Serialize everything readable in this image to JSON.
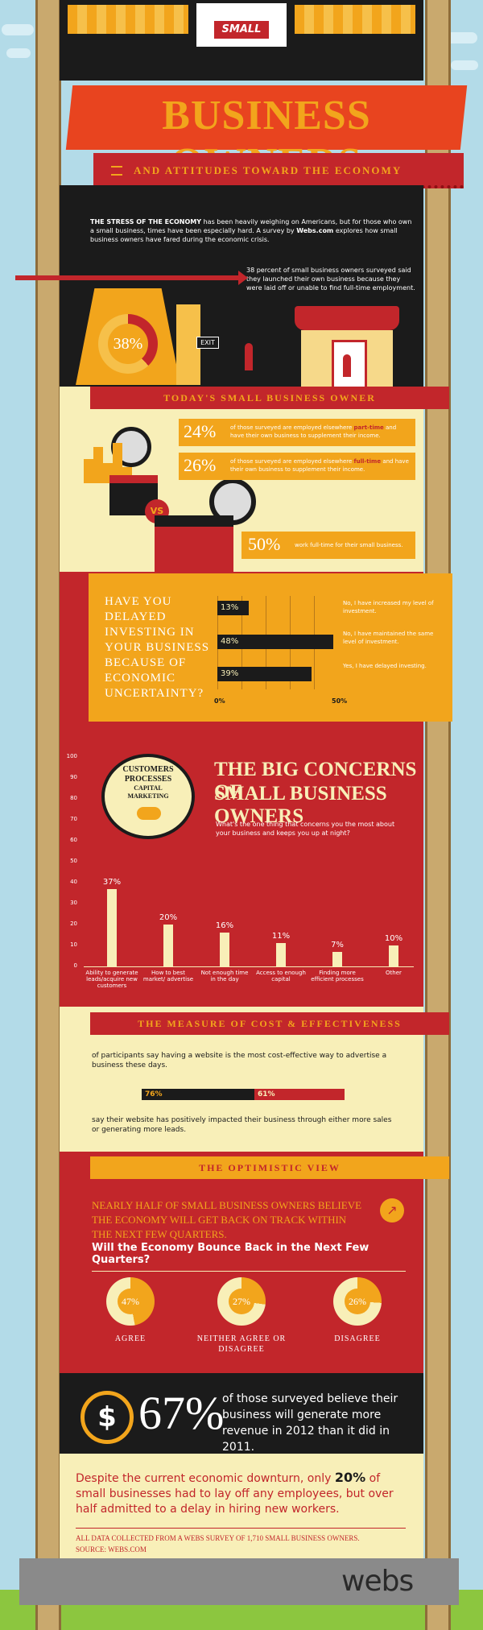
{
  "header": {
    "sign": "SMALL",
    "title": "BUSINESS OWNERS",
    "subtitle": "AND ATTITUDES TOWARD THE ECONOMY"
  },
  "intro": {
    "lead": "THE STRESS OF THE ECONOMY",
    "body_a": "has been heavily weighing on Americans, but for those who own a small business, times have been especially hard. A survey by",
    "brand": "Webs.com",
    "body_b": "explores how small business owners have fared during the economic crisis."
  },
  "laidoff": {
    "text": "38 percent of small business owners surveyed said they launched their own business because they were laid off or unable to find full-time employment.",
    "percent": "38%",
    "exit": "EXIT",
    "fraction": 0.38
  },
  "today": {
    "heading": "TODAY'S SMALL BUSINESS OWNER",
    "stats": [
      {
        "value": "24%",
        "text_a": "of those surveyed are employed elsewhere",
        "highlight": "part-time",
        "text_b": "and have their own business to supplement their income."
      },
      {
        "value": "26%",
        "text_a": "of those surveyed are employed elsewhere",
        "highlight": "full-time",
        "text_b": "and have their own business to supplement their income."
      },
      {
        "value": "50%",
        "text_a": "work full-time for their small business.",
        "highlight": "",
        "text_b": ""
      }
    ],
    "vs": "VS"
  },
  "investing": {
    "question": "HAVE YOU DELAYED INVESTING IN YOUR BUSINESS BECAUSE OF ECONOMIC UNCERTAINTY?",
    "axis_min": "0%",
    "axis_max": "50%",
    "bars": [
      {
        "label": "13%",
        "value": 13,
        "answer": "No, I have increased my level of investment."
      },
      {
        "label": "48%",
        "value": 48,
        "answer": "No, I have maintained the same level of investment."
      },
      {
        "label": "39%",
        "value": 39,
        "answer": "Yes, I have delayed investing."
      }
    ]
  },
  "concerns": {
    "title_a": "THE BIG CONCERNS OF",
    "title_b": "SMALL BUSINESS OWNERS",
    "question": "What's the one thing that concerns you the most about your business and keeps you up at night?",
    "bubble": [
      "CUSTOMERS",
      "PROCESSES",
      "CAPITAL",
      "MARKETING"
    ]
  },
  "chart_data": {
    "type": "bar",
    "categories": [
      "Ability to generate leads/acquire new customers",
      "How to best market/ advertise",
      "Not enough time in the day",
      "Access to enough capital",
      "Finding more efficient processes",
      "Other"
    ],
    "values": [
      37,
      20,
      16,
      11,
      7,
      10
    ],
    "labels": [
      "37%",
      "20%",
      "16%",
      "11%",
      "7%",
      "10%"
    ],
    "yticks": [
      "100",
      "90",
      "80",
      "70",
      "60",
      "50",
      "40",
      "30",
      "20",
      "10",
      "0"
    ],
    "ylim": [
      0,
      100
    ]
  },
  "measure": {
    "heading": "THE MEASURE OF COST & EFFECTIVENESS",
    "top_text": "of participants say having a website is the most cost-effective way to advertise a business these days.",
    "bottom_text": "say their website has positively impacted their business through either more sales or generating more leads.",
    "pct_a": "76%",
    "pct_b": "61%"
  },
  "optimistic": {
    "heading": "THE OPTIMISTIC VIEW",
    "claim": "NEARLY HALF OF SMALL BUSINESS OWNERS BELIEVE THE ECONOMY WILL GET BACK ON TRACK WITHIN THE NEXT FEW QUARTERS.",
    "question": "Will the Economy Bounce Back in the Next Few Quarters?",
    "donuts": [
      {
        "value": "47%",
        "fraction": 0.47,
        "label": "AGREE"
      },
      {
        "value": "27%",
        "fraction": 0.27,
        "label": "NEITHER AGREE OR DISAGREE"
      },
      {
        "value": "26%",
        "fraction": 0.26,
        "label": "DISAGREE"
      }
    ]
  },
  "revenue": {
    "percent": "67%",
    "text": "of those surveyed believe their business will generate more revenue in 2012 than it did in 2011."
  },
  "closing": {
    "text_a": "Despite the current economic downturn, only",
    "highlight": "20%",
    "text_b": "of small businesses had to lay off any employees, but over half admitted to a delay in hiring new workers.",
    "note": "ALL DATA COLLECTED FROM A WEBS SURVEY OF 1,710 SMALL BUSINESS OWNERS.",
    "source": "SOURCE: WEBS.COM"
  },
  "footer": {
    "logo": "webs"
  },
  "colors": {
    "red": "#c2262b",
    "orange": "#f2a51c",
    "cream": "#f8efb8",
    "dark": "#1b1b1b",
    "sky": "#b3dbe8",
    "grass": "#8cc63f"
  }
}
